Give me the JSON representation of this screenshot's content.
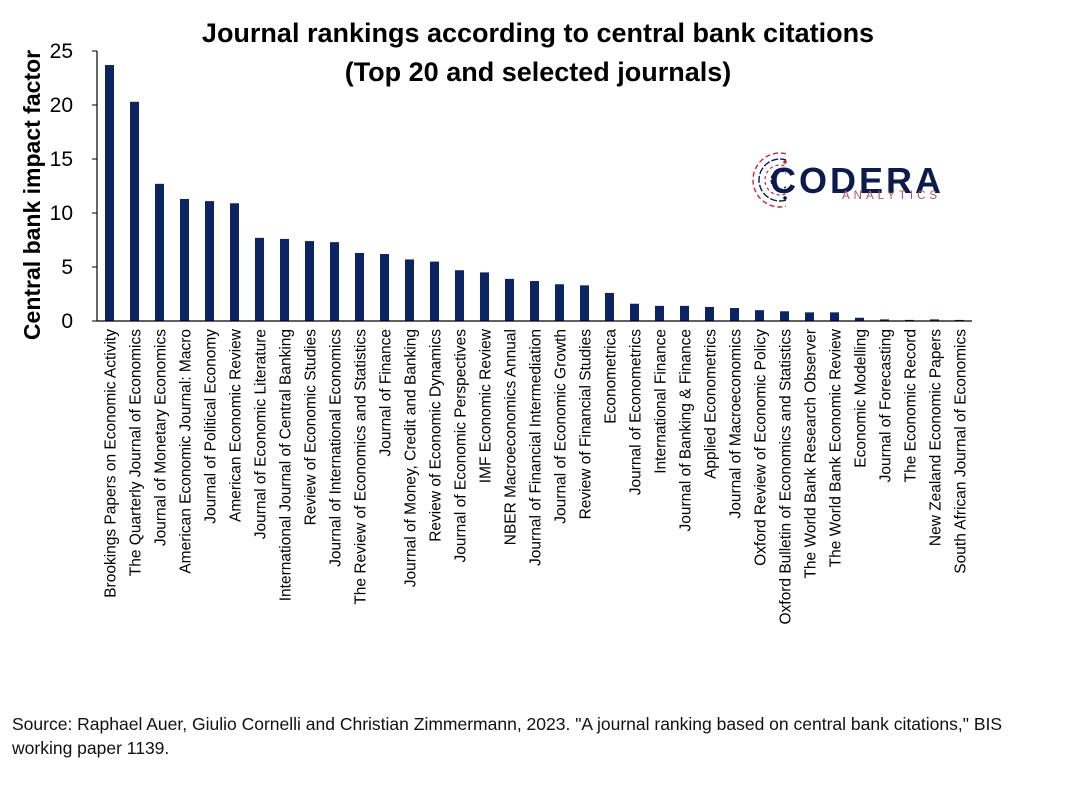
{
  "chart_data": {
    "type": "bar",
    "title": [
      "Journal rankings according to central bank citations",
      "(Top 20 and selected journals)"
    ],
    "ylabel": "Central bank impact factor",
    "xlabel": "",
    "ylim": [
      0,
      25
    ],
    "yticks": [
      0,
      5,
      10,
      15,
      20,
      25
    ],
    "grid": false,
    "bar_color": "#0c2462",
    "categories": [
      "Brookings Papers on Economic Activity",
      "The Quarterly Journal of Economics",
      "Journal of Monetary Economics",
      "American Economic Journal: Macro",
      "Journal of Political Economy",
      "American Economic Review",
      "Journal of Economic Literature",
      "International Journal of Central Banking",
      "Review of Economic Studies",
      "Journal of International Economics",
      "The Review of Economics and Statistics",
      "Journal of Finance",
      "Journal of Money, Credit and Banking",
      "Review of Economic Dynamics",
      "Journal of Economic Perspectives",
      "IMF Economic Review",
      "NBER Macroeconomics Annual",
      "Journal of Financial Intermediation",
      "Journal of Economic Growth",
      "Review of Financial Studies",
      "Econometrica",
      "Journal of Econometrics",
      "International Finance",
      "Journal of Banking & Finance",
      "Applied Econometrics",
      "Journal of Macroeconomics",
      "Oxford Review of Economic Policy",
      "Oxford Bulletin of Economics and Statistics",
      "The World Bank Research Observer",
      "The World Bank Economic Review",
      "Economic Modelling",
      "Journal of Forecasting",
      "The Economic Record",
      "New Zealand Economic Papers",
      "South African Journal of Economics"
    ],
    "values": [
      23.7,
      20.3,
      12.7,
      11.3,
      11.1,
      10.9,
      7.7,
      7.6,
      7.4,
      7.3,
      6.3,
      6.2,
      5.7,
      5.5,
      4.7,
      4.5,
      3.9,
      3.7,
      3.4,
      3.3,
      2.6,
      1.6,
      1.4,
      1.4,
      1.3,
      1.2,
      1.0,
      0.9,
      0.8,
      0.8,
      0.3,
      0.15,
      0.1,
      0.15,
      0.1
    ]
  },
  "source": "Source: Raphael Auer, Giulio Cornelli and Christian Zimmermann, 2023. \"A journal ranking based on central bank citations,\" BIS working paper 1139.",
  "logo": {
    "name": "CODERA",
    "tagline": "ANALYTICS",
    "colors": {
      "primary": "#0d1b4c",
      "accent": "#c0283a",
      "tagline": "#b0566a"
    }
  }
}
